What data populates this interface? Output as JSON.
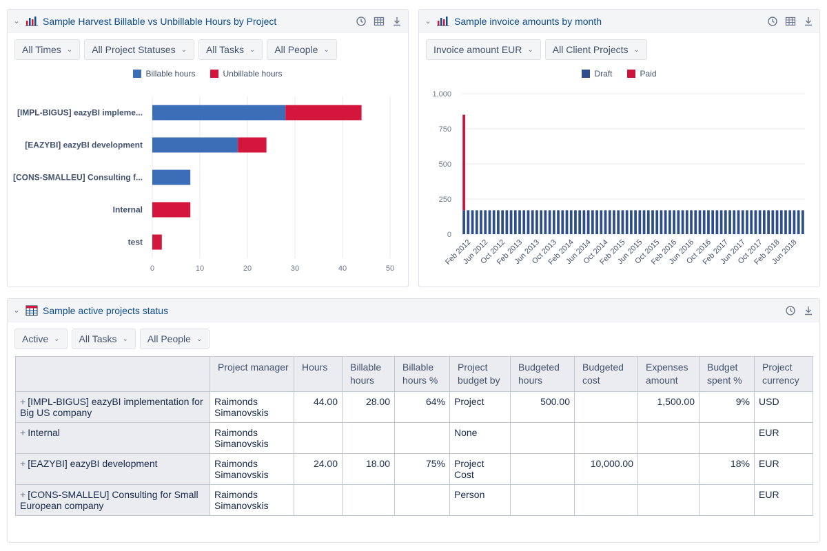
{
  "colors": {
    "billable": "#3c6db7",
    "unbillable": "#d4153c",
    "draft": "#2e4d8b",
    "paid": "#c8173b",
    "title": "#0b4a8b"
  },
  "panel1": {
    "title": "Sample Harvest Billable vs Unbillable Hours by Project",
    "icons": [
      "clock-icon",
      "table-icon",
      "export-icon"
    ],
    "filters": [
      "All Times",
      "All Project Statuses",
      "All Tasks",
      "All People"
    ],
    "legend": [
      "Billable hours",
      "Unbillable hours"
    ]
  },
  "panel2": {
    "title": "Sample invoice amounts by month",
    "icons": [
      "clock-icon",
      "table-icon",
      "export-icon"
    ],
    "filters": [
      "Invoice amount EUR",
      "All Client Projects"
    ],
    "legend": [
      "Draft",
      "Paid"
    ]
  },
  "panel3": {
    "title": "Sample active projects status",
    "icons": [
      "clock-icon",
      "export-icon"
    ],
    "filters": [
      "Active",
      "All Tasks",
      "All People"
    ],
    "table": {
      "headers": [
        "",
        "Project manager",
        "Hours",
        "Billable hours",
        "Billable hours %",
        "Project budget by",
        "Budgeted hours",
        "Budgeted cost",
        "Expenses amount",
        "Budget spent %",
        "Project currency"
      ],
      "rows": [
        [
          "[IMPL-BIGUS] eazyBI implementation for Big US company",
          "Raimonds Simanovskis",
          "44.00",
          "28.00",
          "64%",
          "Project",
          "500.00",
          "",
          "1,500.00",
          "9%",
          "USD"
        ],
        [
          "Internal",
          "Raimonds Simanovskis",
          "",
          "",
          "",
          "None",
          "",
          "",
          "",
          "",
          "EUR"
        ],
        [
          "[EAZYBI] eazyBI development",
          "Raimonds Simanovskis",
          "24.00",
          "18.00",
          "75%",
          "Project Cost",
          "",
          "10,000.00",
          "",
          "18%",
          "EUR"
        ],
        [
          "[CONS-SMALLEU] Consulting for Small European company",
          "Raimonds Simanovskis",
          "",
          "",
          "",
          "Person",
          "",
          "",
          "",
          "",
          "EUR"
        ]
      ]
    }
  },
  "chart_data": [
    {
      "type": "bar",
      "orientation": "horizontal",
      "stacked": true,
      "categories": [
        "[IMPL-BIGUS] eazyBI impleme...",
        "[EAZYBI] eazyBI development",
        "[CONS-SMALLEU] Consulting f...",
        "Internal",
        "test"
      ],
      "series": [
        {
          "name": "Billable hours",
          "values": [
            28,
            18,
            8,
            0,
            0
          ]
        },
        {
          "name": "Unbillable hours",
          "values": [
            16,
            6,
            0,
            8,
            2
          ]
        }
      ],
      "xlim": [
        0,
        50
      ],
      "xticks": [
        0,
        10,
        20,
        30,
        40,
        50
      ],
      "grid": true,
      "legend": "top"
    },
    {
      "type": "bar",
      "stacked": true,
      "start_month": "2012-01",
      "x_tick_labels": [
        "Feb 2012",
        "Jun 2012",
        "Oct 2012",
        "Feb 2013",
        "Jun 2013",
        "Oct 2013",
        "Feb 2014",
        "Jun 2014",
        "Oct 2014",
        "Feb 2015",
        "Jun 2015",
        "Oct 2015",
        "Feb 2016",
        "Jun 2016",
        "Oct 2016",
        "Feb 2017",
        "Jun 2017",
        "Oct 2017",
        "Feb 2018",
        "Jun 2018"
      ],
      "series": [
        {
          "name": "Draft",
          "values": [
            170,
            170,
            170,
            170,
            170,
            170,
            170,
            170,
            170,
            170,
            170,
            170,
            170,
            170,
            170,
            170,
            170,
            170,
            170,
            170,
            170,
            170,
            170,
            170,
            170,
            170,
            170,
            170,
            170,
            170,
            170,
            170,
            170,
            170,
            170,
            170,
            170,
            170,
            170,
            170,
            170,
            170,
            170,
            170,
            170,
            170,
            170,
            170,
            170,
            170,
            170,
            170,
            170,
            170,
            170,
            170,
            170,
            170,
            170,
            170,
            170,
            170,
            170,
            170,
            170,
            170,
            170,
            170,
            170,
            170,
            170,
            170,
            170,
            170,
            170,
            170,
            170,
            170,
            170,
            170
          ]
        },
        {
          "name": "Paid",
          "values": [
            680,
            0,
            0,
            0,
            0,
            0,
            0,
            0,
            0,
            0,
            0,
            0,
            0,
            0,
            0,
            0,
            0,
            0,
            0,
            0,
            0,
            0,
            0,
            0,
            0,
            0,
            0,
            0,
            0,
            0,
            0,
            0,
            0,
            0,
            0,
            0,
            0,
            0,
            0,
            0,
            0,
            0,
            0,
            0,
            0,
            0,
            0,
            0,
            0,
            0,
            0,
            0,
            0,
            0,
            0,
            0,
            0,
            0,
            0,
            0,
            0,
            0,
            0,
            0,
            0,
            0,
            0,
            0,
            0,
            0,
            0,
            0,
            0,
            0,
            0,
            0,
            0,
            0,
            0,
            0
          ]
        }
      ],
      "ylim": [
        0,
        1000
      ],
      "yticks": [
        "0",
        "250",
        "500",
        "750",
        "1,000"
      ],
      "grid": true,
      "legend": "top"
    }
  ]
}
